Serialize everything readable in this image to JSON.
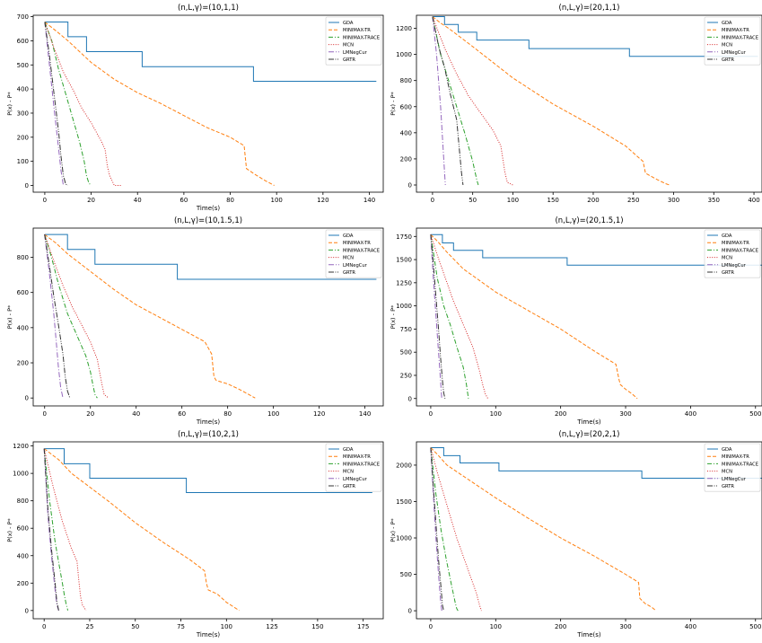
{
  "figure": {
    "background": "#ffffff"
  },
  "series_styles": [
    {
      "name": "GDA",
      "color": "#1f77b4",
      "dash": ""
    },
    {
      "name": "MINIMAX-TR",
      "color": "#ff7f0e",
      "dash": "4,2"
    },
    {
      "name": "MINIMAX-TRACE",
      "color": "#2ca02c",
      "dash": "5,2,1,2"
    },
    {
      "name": "MCN",
      "color": "#d62728",
      "dash": "1,1.6"
    },
    {
      "name": "LMNegCur",
      "color": "#9467bd",
      "dash": "6,2,1,2"
    },
    {
      "name": "GRTR",
      "color": "#333333",
      "dash": "6,1.5,1,1.5,1,1.5"
    }
  ],
  "chart_data": [
    {
      "type": "line",
      "title": "(n,L,γ)=(10,1,1)",
      "xlabel": "Time(s)",
      "ylabel": "P(x) - P*",
      "xlim": [
        -5,
        146
      ],
      "ylim": [
        -28,
        706
      ],
      "xticks": [
        0,
        20,
        40,
        60,
        80,
        100,
        120,
        140
      ],
      "yticks": [
        0,
        100,
        200,
        300,
        400,
        500,
        600,
        700
      ],
      "legend": "top-right",
      "series": [
        {
          "name": "GDA",
          "steps": true,
          "x": [
            0,
            5,
            10,
            18,
            42,
            90,
            143
          ],
          "y": [
            678,
            678,
            617,
            555,
            493,
            432,
            432
          ]
        },
        {
          "name": "MINIMAX-TR",
          "x": [
            0,
            5,
            10,
            20,
            30,
            40,
            50,
            60,
            70,
            80,
            86,
            87,
            90,
            95,
            99
          ],
          "y": [
            678,
            640,
            600,
            510,
            440,
            385,
            340,
            290,
            240,
            200,
            165,
            70,
            50,
            20,
            0
          ]
        },
        {
          "name": "MINIMAX-TRACE",
          "x": [
            0,
            3,
            6,
            9,
            12,
            15,
            17,
            18,
            19,
            20
          ],
          "y": [
            678,
            600,
            480,
            380,
            280,
            180,
            100,
            40,
            10,
            0
          ]
        },
        {
          "name": "MCN",
          "x": [
            0,
            4,
            8,
            12,
            16,
            20,
            24,
            26,
            27,
            28,
            29,
            30,
            33
          ],
          "y": [
            678,
            570,
            470,
            400,
            320,
            260,
            190,
            150,
            80,
            40,
            20,
            0,
            0
          ]
        },
        {
          "name": "LMNegCur",
          "x": [
            0,
            2,
            4,
            6,
            7,
            8
          ],
          "y": [
            678,
            500,
            320,
            150,
            60,
            0
          ]
        },
        {
          "name": "GRTR",
          "x": [
            0,
            2,
            4,
            6,
            7,
            8,
            9,
            10
          ],
          "y": [
            678,
            540,
            380,
            220,
            120,
            40,
            5,
            0
          ]
        }
      ]
    },
    {
      "type": "line",
      "title": "(n,L,γ)=(20,1,1)",
      "xlabel": "",
      "ylabel": "P(x) - P*",
      "xlim": [
        -20,
        410
      ],
      "ylim": [
        -55,
        1300
      ],
      "xticks": [
        0,
        50,
        100,
        150,
        200,
        250,
        300,
        350,
        400
      ],
      "yticks": [
        0,
        200,
        400,
        600,
        800,
        1000,
        1200
      ],
      "legend": "top-right",
      "series": [
        {
          "name": "GDA",
          "steps": true,
          "x": [
            0,
            8,
            15,
            32,
            55,
            120,
            245,
            405
          ],
          "y": [
            1290,
            1290,
            1230,
            1170,
            1110,
            1045,
            985,
            985
          ]
        },
        {
          "name": "MINIMAX-TR",
          "x": [
            0,
            10,
            20,
            50,
            100,
            150,
            200,
            240,
            262,
            265,
            280,
            290,
            295
          ],
          "y": [
            1290,
            1240,
            1200,
            1060,
            820,
            620,
            450,
            300,
            180,
            90,
            40,
            10,
            0
          ]
        },
        {
          "name": "MINIMAX-TRACE",
          "x": [
            0,
            10,
            20,
            30,
            40,
            50,
            55,
            57
          ],
          "y": [
            1290,
            1000,
            800,
            600,
            400,
            180,
            40,
            0
          ]
        },
        {
          "name": "MCN",
          "x": [
            0,
            15,
            30,
            45,
            60,
            75,
            85,
            90,
            93,
            100
          ],
          "y": [
            1290,
            1050,
            850,
            680,
            550,
            420,
            300,
            100,
            20,
            0
          ]
        },
        {
          "name": "LMNegCur",
          "x": [
            0,
            5,
            10,
            14,
            16
          ],
          "y": [
            1290,
            1000,
            600,
            200,
            0
          ]
        },
        {
          "name": "GRTR",
          "x": [
            0,
            8,
            15,
            22,
            30,
            36,
            38
          ],
          "y": [
            1290,
            1050,
            900,
            700,
            500,
            100,
            0
          ]
        }
      ]
    },
    {
      "type": "line",
      "title": "(n,L,γ)=(10,1.5,1)",
      "xlabel": "Time(s)",
      "ylabel": "P(x) - P*",
      "xlim": [
        -5,
        148
      ],
      "ylim": [
        -45,
        966
      ],
      "xticks": [
        0,
        20,
        40,
        60,
        80,
        100,
        120,
        140
      ],
      "yticks": [
        0,
        200,
        400,
        600,
        800
      ],
      "legend": "top-right",
      "series": [
        {
          "name": "GDA",
          "steps": true,
          "x": [
            0,
            5,
            10,
            22,
            58,
            145
          ],
          "y": [
            930,
            930,
            845,
            760,
            675,
            675
          ]
        },
        {
          "name": "MINIMAX-TR",
          "x": [
            0,
            5,
            10,
            20,
            30,
            40,
            50,
            60,
            70,
            73,
            74,
            75,
            80,
            85,
            92
          ],
          "y": [
            930,
            880,
            820,
            720,
            620,
            530,
            460,
            390,
            320,
            250,
            120,
            100,
            80,
            50,
            0
          ]
        },
        {
          "name": "MINIMAX-TRACE",
          "x": [
            0,
            3,
            6,
            10,
            14,
            18,
            20,
            21,
            22,
            23
          ],
          "y": [
            930,
            800,
            650,
            480,
            360,
            240,
            150,
            80,
            20,
            0
          ]
        },
        {
          "name": "MCN",
          "x": [
            0,
            4,
            8,
            12,
            16,
            20,
            23,
            24,
            25,
            26,
            28
          ],
          "y": [
            930,
            780,
            640,
            520,
            420,
            320,
            220,
            150,
            80,
            20,
            0
          ]
        },
        {
          "name": "LMNegCur",
          "x": [
            0,
            2,
            4,
            5,
            6,
            7,
            8
          ],
          "y": [
            930,
            720,
            480,
            330,
            180,
            60,
            0
          ]
        },
        {
          "name": "GRTR",
          "x": [
            0,
            2,
            4,
            6,
            8,
            9,
            10,
            11
          ],
          "y": [
            930,
            760,
            580,
            420,
            250,
            120,
            40,
            0
          ]
        }
      ]
    },
    {
      "type": "line",
      "title": "(n,L,γ)=(20,1.5,1)",
      "xlabel": "Time(s)",
      "ylabel": "P(x) - P*",
      "xlim": [
        -22,
        510
      ],
      "ylim": [
        -80,
        1840
      ],
      "xticks": [
        0,
        100,
        200,
        300,
        400,
        500
      ],
      "yticks": [
        0,
        250,
        500,
        750,
        1000,
        1250,
        1500,
        1750
      ],
      "legend": "top-right",
      "series": [
        {
          "name": "GDA",
          "steps": true,
          "x": [
            0,
            10,
            18,
            35,
            80,
            210,
            510
          ],
          "y": [
            1770,
            1770,
            1680,
            1600,
            1520,
            1440,
            1440
          ]
        },
        {
          "name": "MINIMAX-TR",
          "x": [
            0,
            10,
            25,
            50,
            100,
            150,
            200,
            250,
            285,
            290,
            292,
            300,
            310,
            318
          ],
          "y": [
            1770,
            1700,
            1580,
            1400,
            1150,
            950,
            750,
            520,
            370,
            200,
            150,
            100,
            50,
            0
          ]
        },
        {
          "name": "MINIMAX-TRACE",
          "x": [
            0,
            10,
            20,
            30,
            40,
            50,
            55,
            58
          ],
          "y": [
            1770,
            1300,
            1000,
            800,
            560,
            340,
            150,
            0
          ]
        },
        {
          "name": "MCN",
          "x": [
            0,
            10,
            20,
            35,
            50,
            65,
            75,
            80,
            84,
            88
          ],
          "y": [
            1770,
            1550,
            1350,
            1050,
            800,
            550,
            300,
            150,
            50,
            0
          ]
        },
        {
          "name": "LMNegCur",
          "x": [
            0,
            4,
            8,
            12,
            15,
            17
          ],
          "y": [
            1770,
            1300,
            900,
            500,
            200,
            0
          ]
        },
        {
          "name": "GRTR",
          "x": [
            0,
            4,
            8,
            12,
            15,
            18,
            20,
            22
          ],
          "y": [
            1770,
            1450,
            1100,
            750,
            450,
            200,
            60,
            0
          ]
        }
      ]
    },
    {
      "type": "line",
      "title": "(n,L,γ)=(10,2,1)",
      "xlabel": "Time(s)",
      "ylabel": "P(x) - P*",
      "xlim": [
        -6,
        186
      ],
      "ylim": [
        -60,
        1230
      ],
      "xticks": [
        0,
        25,
        50,
        75,
        100,
        125,
        150,
        175
      ],
      "yticks": [
        0,
        200,
        400,
        600,
        800,
        1000,
        1200
      ],
      "legend": "top-right",
      "series": [
        {
          "name": "GDA",
          "steps": true,
          "x": [
            0,
            6,
            11,
            25,
            78,
            180
          ],
          "y": [
            1180,
            1180,
            1070,
            965,
            860,
            860
          ]
        },
        {
          "name": "MINIMAX-TR",
          "x": [
            0,
            8,
            15,
            25,
            35,
            50,
            65,
            80,
            88,
            89,
            90,
            95,
            100,
            107
          ],
          "y": [
            1180,
            1100,
            1000,
            900,
            800,
            640,
            500,
            370,
            290,
            200,
            150,
            120,
            60,
            0
          ]
        },
        {
          "name": "MINIMAX-TRACE",
          "x": [
            0,
            3,
            6,
            8,
            10,
            11,
            12,
            13
          ],
          "y": [
            1180,
            800,
            500,
            350,
            200,
            120,
            50,
            0
          ]
        },
        {
          "name": "MCN",
          "x": [
            0,
            5,
            10,
            15,
            18,
            19,
            20,
            21,
            23
          ],
          "y": [
            1180,
            900,
            650,
            450,
            360,
            220,
            100,
            40,
            0
          ]
        },
        {
          "name": "LMNegCur",
          "x": [
            0,
            2,
            4,
            6,
            7,
            8
          ],
          "y": [
            1180,
            700,
            400,
            150,
            40,
            0
          ]
        },
        {
          "name": "GRTR",
          "x": [
            0,
            2,
            4,
            6,
            7,
            8
          ],
          "y": [
            1180,
            750,
            450,
            200,
            60,
            0
          ]
        }
      ]
    },
    {
      "type": "line",
      "title": "(n,L,γ)=(20,2,1)",
      "xlabel": "Time(s)",
      "ylabel": "P(x) - P*",
      "xlim": [
        -22,
        510
      ],
      "ylim": [
        -110,
        2320
      ],
      "xticks": [
        0,
        100,
        200,
        300,
        400,
        500
      ],
      "yticks": [
        0,
        500,
        1000,
        1500,
        2000
      ],
      "legend": "top-right",
      "series": [
        {
          "name": "GDA",
          "steps": true,
          "x": [
            0,
            10,
            20,
            45,
            105,
            325,
            510
          ],
          "y": [
            2240,
            2240,
            2130,
            2030,
            1920,
            1820,
            1820
          ]
        },
        {
          "name": "MINIMAX-TR",
          "x": [
            0,
            10,
            25,
            50,
            100,
            150,
            200,
            250,
            300,
            320,
            322,
            330,
            340,
            347
          ],
          "y": [
            2240,
            2150,
            2000,
            1850,
            1550,
            1270,
            1000,
            760,
            500,
            390,
            170,
            100,
            50,
            0
          ]
        },
        {
          "name": "MINIMAX-TRACE",
          "x": [
            0,
            8,
            16,
            24,
            32,
            38,
            40,
            42
          ],
          "y": [
            2240,
            1600,
            1100,
            700,
            350,
            100,
            30,
            0
          ]
        },
        {
          "name": "MCN",
          "x": [
            0,
            10,
            20,
            30,
            40,
            50,
            60,
            70,
            75,
            78
          ],
          "y": [
            2240,
            1900,
            1600,
            1300,
            1000,
            750,
            500,
            250,
            80,
            0
          ]
        },
        {
          "name": "LMNegCur",
          "x": [
            0,
            4,
            8,
            12,
            15,
            17
          ],
          "y": [
            2240,
            1600,
            1000,
            500,
            150,
            0
          ]
        },
        {
          "name": "GRTR",
          "x": [
            0,
            4,
            8,
            12,
            16,
            18,
            20
          ],
          "y": [
            2240,
            1700,
            1200,
            700,
            300,
            80,
            0
          ]
        }
      ]
    }
  ]
}
